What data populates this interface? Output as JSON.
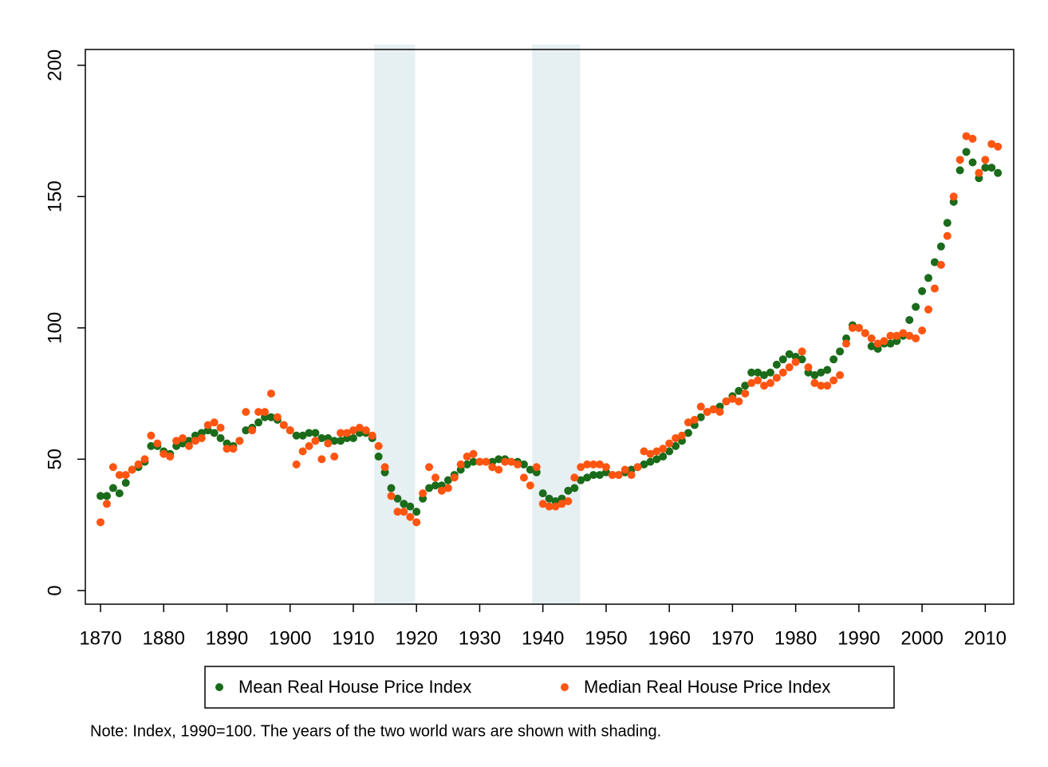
{
  "chart_data": {
    "type": "scatter",
    "x": [
      1870,
      1871,
      1872,
      1873,
      1874,
      1875,
      1876,
      1877,
      1878,
      1879,
      1880,
      1881,
      1882,
      1883,
      1884,
      1885,
      1886,
      1887,
      1888,
      1889,
      1890,
      1891,
      1892,
      1893,
      1894,
      1895,
      1896,
      1897,
      1898,
      1899,
      1900,
      1901,
      1902,
      1903,
      1904,
      1905,
      1906,
      1907,
      1908,
      1909,
      1910,
      1911,
      1912,
      1913,
      1914,
      1915,
      1916,
      1917,
      1918,
      1919,
      1920,
      1921,
      1922,
      1923,
      1924,
      1925,
      1926,
      1927,
      1928,
      1929,
      1930,
      1931,
      1932,
      1933,
      1934,
      1935,
      1936,
      1937,
      1938,
      1939,
      1940,
      1941,
      1942,
      1943,
      1944,
      1945,
      1946,
      1947,
      1948,
      1949,
      1950,
      1951,
      1952,
      1953,
      1954,
      1955,
      1956,
      1957,
      1958,
      1959,
      1960,
      1961,
      1962,
      1963,
      1964,
      1965,
      1966,
      1967,
      1968,
      1969,
      1970,
      1971,
      1972,
      1973,
      1974,
      1975,
      1976,
      1977,
      1978,
      1979,
      1980,
      1981,
      1982,
      1983,
      1984,
      1985,
      1986,
      1987,
      1988,
      1989,
      1990,
      1991,
      1992,
      1993,
      1994,
      1995,
      1996,
      1997,
      1998,
      1999,
      2000,
      2001,
      2002,
      2003,
      2004,
      2005,
      2006,
      2007,
      2008,
      2009,
      2010,
      2011,
      2012
    ],
    "series": [
      {
        "name": "Mean Real House Price Index",
        "color": "#1a6b1a",
        "values": [
          36,
          36,
          39,
          37,
          41,
          46,
          47,
          49,
          55,
          55,
          53,
          52,
          55,
          56,
          57,
          59,
          60,
          61,
          60,
          58,
          56,
          55,
          57,
          61,
          62,
          64,
          66,
          66,
          65,
          63,
          61,
          59,
          59,
          60,
          60,
          58,
          58,
          57,
          57,
          58,
          58,
          60,
          60,
          58,
          51,
          45,
          39,
          35,
          33,
          32,
          30,
          35,
          39,
          40,
          40,
          42,
          44,
          46,
          48,
          49,
          49,
          49,
          49,
          50,
          50,
          49,
          49,
          48,
          46,
          45,
          37,
          35,
          34,
          35,
          38,
          39,
          42,
          43,
          44,
          44,
          45,
          44,
          44,
          45,
          46,
          47,
          48,
          49,
          50,
          51,
          53,
          55,
          57,
          60,
          63,
          66,
          68,
          69,
          70,
          72,
          74,
          76,
          78,
          83,
          83,
          82,
          83,
          86,
          88,
          90,
          89,
          88,
          83,
          82,
          83,
          84,
          88,
          91,
          96,
          101,
          100,
          98,
          93,
          92,
          94,
          94,
          95,
          97,
          103,
          108,
          114,
          119,
          125,
          131,
          140,
          148,
          160,
          167,
          163,
          157,
          161,
          161,
          159
        ]
      },
      {
        "name": "Median Real House Price Index",
        "color": "#ff5511",
        "values": [
          26,
          33,
          47,
          44,
          44,
          46,
          48,
          50,
          59,
          56,
          52,
          51,
          57,
          58,
          55,
          57,
          58,
          63,
          64,
          62,
          54,
          54,
          57,
          68,
          61,
          68,
          68,
          75,
          66,
          63,
          61,
          48,
          53,
          55,
          57,
          50,
          56,
          51,
          60,
          60,
          61,
          62,
          61,
          59,
          55,
          47,
          36,
          30,
          30,
          28,
          26,
          37,
          47,
          43,
          38,
          39,
          43,
          48,
          51,
          52,
          49,
          49,
          47,
          46,
          49,
          49,
          48,
          43,
          40,
          47,
          33,
          32,
          32,
          33,
          34,
          43,
          47,
          48,
          48,
          48,
          47,
          44,
          44,
          46,
          44,
          47,
          53,
          52,
          53,
          54,
          56,
          58,
          59,
          64,
          65,
          70,
          68,
          69,
          68,
          72,
          73,
          72,
          75,
          79,
          80,
          78,
          79,
          81,
          83,
          85,
          87,
          91,
          85,
          79,
          78,
          78,
          80,
          82,
          94,
          100,
          100,
          98,
          96,
          94,
          95,
          97,
          97,
          98,
          97,
          96,
          99,
          107,
          115,
          124,
          135,
          150,
          164,
          173,
          172,
          159,
          164,
          170,
          169
        ]
      }
    ],
    "shaded_periods": [
      [
        1913.3,
        1919.8
      ],
      [
        1938.3,
        1945.9
      ]
    ],
    "shade_color": "#e6eff2",
    "xlim": [
      1867.6,
      2014.5
    ],
    "ylim": [
      -5.2,
      206
    ],
    "xticks": [
      1870,
      1880,
      1890,
      1900,
      1910,
      1920,
      1930,
      1940,
      1950,
      1960,
      1970,
      1980,
      1990,
      2000,
      2010
    ],
    "yticks": [
      0,
      50,
      100,
      150,
      200
    ],
    "note": "Note: Index, 1990=100. The years of the two world wars are shown with shading."
  }
}
